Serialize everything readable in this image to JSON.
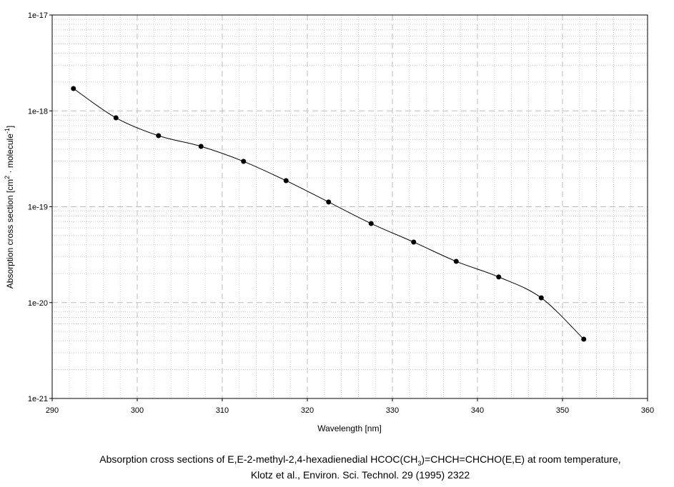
{
  "chart_data": {
    "type": "line",
    "x": [
      292.5,
      297.5,
      302.5,
      307.5,
      312.5,
      317.5,
      322.5,
      327.5,
      332.5,
      337.5,
      342.5,
      347.5,
      352.5
    ],
    "series": [
      {
        "color": "#000000",
        "values": [
          1.71e-18,
          8.46e-19,
          5.51e-19,
          4.26e-19,
          2.97e-19,
          1.87e-19,
          1.12e-19,
          6.68e-20,
          4.28e-20,
          2.69e-20,
          1.85e-20,
          1.12e-20,
          4.15e-21
        ]
      }
    ],
    "xlim": [
      290,
      360
    ],
    "xticks": [
      290,
      300,
      310,
      320,
      330,
      340,
      350,
      360
    ],
    "ylim": [
      1e-21,
      1e-17
    ],
    "yticks": [
      1e-21,
      1e-20,
      1e-19,
      1e-18,
      1e-17
    ],
    "ylog": true,
    "grid": true,
    "minor_grid": true,
    "xlabel": "Wavelength [nm]",
    "ylabel": [
      "Absorption cross section [cm",
      "2",
      " · molecule",
      "-1",
      "]"
    ],
    "caption": [
      [
        "Absorption cross sections of E,E-2-methyl-2,4-hexadienedial HCOC(CH",
        "3",
        ")=CHCH=CHCHO(E,E) at room temperature,"
      ],
      [
        "Klotz et al., Environ. Sci. Technol. 29 (1995) 2322"
      ]
    ]
  }
}
